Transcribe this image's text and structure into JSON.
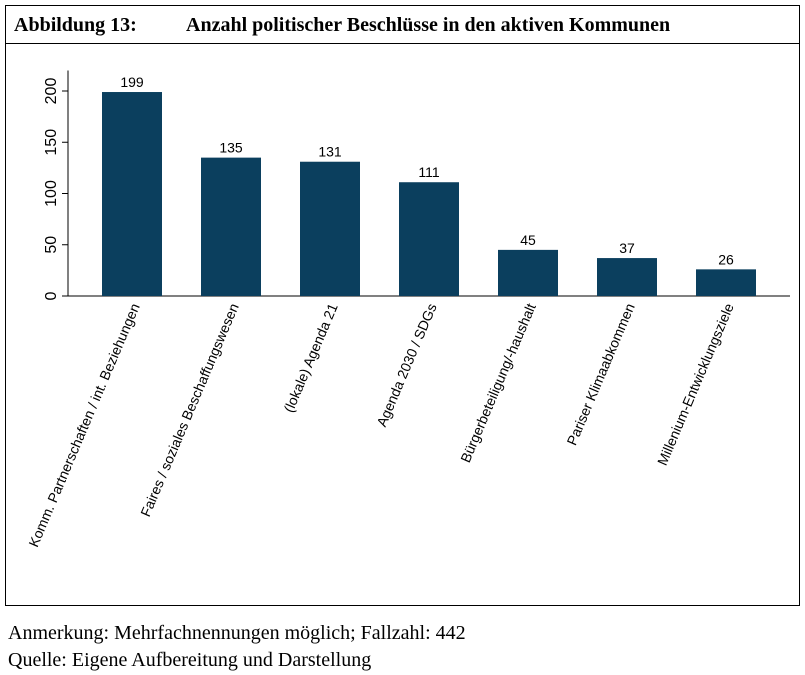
{
  "chart_data": {
    "type": "bar",
    "label": "Abbildung 13:",
    "title": "Anzahl politischer Beschlüsse in den aktiven Kommunen",
    "categories": [
      "Komm. Partnerschaften / int. Beziehungen",
      "Faires / soziales Beschaffungswesen",
      "(lokale) Agenda 21",
      "Agenda 2030 / SDGs",
      "Bürgerbeteiligung/-haushalt",
      "Pariser Klimaabkommen",
      "Millenium-Entwicklungsziele"
    ],
    "values": [
      199,
      135,
      131,
      111,
      45,
      37,
      26
    ],
    "color": "#0b3f5e",
    "ylim": [
      0,
      220
    ],
    "yticks": [
      0,
      50,
      100,
      150,
      200
    ],
    "grid": false,
    "note": "Anmerkung: Mehrfachnennungen möglich; Fallzahl: 442",
    "source": "Quelle: Eigene Aufbereitung und Darstellung"
  }
}
